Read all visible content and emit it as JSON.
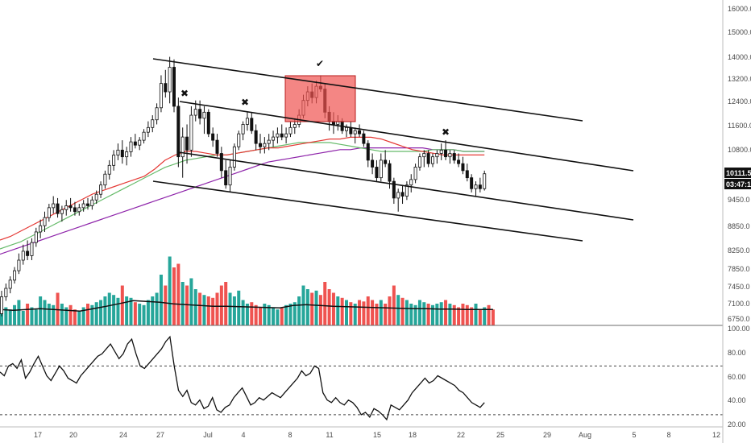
{
  "chart_data": {
    "type": "candlestick",
    "price_axis": {
      "ticks": [
        "16000.0",
        "15000.0",
        "14000.0",
        "13200.0",
        "12400.0",
        "11600.0",
        "10800.0",
        "10111.5",
        "9450.0",
        "8850.0",
        "8250.0",
        "7850.0",
        "7450.0",
        "7100.0",
        "6750.0"
      ],
      "ylim": [
        6600,
        16500
      ],
      "scale": "log"
    },
    "rsi_axis": {
      "ticks": [
        "100.00",
        "80.00",
        "60.00",
        "40.00",
        "20.00"
      ],
      "ylim": [
        20,
        100
      ],
      "levels": [
        70,
        30
      ]
    },
    "date_axis": {
      "ticks": [
        "17",
        "20",
        "24",
        "27",
        "Jul",
        "4",
        "8",
        "11",
        "15",
        "18",
        "22",
        "25",
        "29",
        "Aug",
        "5",
        "8",
        "12"
      ]
    },
    "last_price": {
      "value": "10111.5",
      "countdown": "03:47:17"
    },
    "candles": [
      [
        6850,
        7300,
        6800,
        7180
      ],
      [
        7180,
        7450,
        7100,
        7350
      ],
      [
        7350,
        7600,
        7250,
        7520
      ],
      [
        7520,
        7800,
        7450,
        7720
      ],
      [
        7720,
        8100,
        7650,
        7950
      ],
      [
        7950,
        8300,
        7850,
        8150
      ],
      [
        8150,
        8400,
        7950,
        8050
      ],
      [
        8050,
        8450,
        7950,
        8350
      ],
      [
        8350,
        8700,
        8250,
        8600
      ],
      [
        8600,
        8900,
        8450,
        8750
      ],
      [
        8750,
        9100,
        8600,
        8950
      ],
      [
        8950,
        9300,
        8850,
        9200
      ],
      [
        9200,
        9500,
        9050,
        9300
      ],
      [
        9300,
        9450,
        8950,
        9050
      ],
      [
        9050,
        9250,
        8850,
        9150
      ],
      [
        9150,
        9400,
        9000,
        9250
      ],
      [
        9250,
        9450,
        9100,
        9200
      ],
      [
        9200,
        9350,
        9000,
        9100
      ],
      [
        9100,
        9300,
        9000,
        9200
      ],
      [
        9200,
        9400,
        9100,
        9300
      ],
      [
        9300,
        9450,
        9150,
        9250
      ],
      [
        9250,
        9500,
        9150,
        9400
      ],
      [
        9400,
        9650,
        9300,
        9550
      ],
      [
        9550,
        9900,
        9450,
        9800
      ],
      [
        9800,
        10200,
        9700,
        10100
      ],
      [
        10100,
        10500,
        9950,
        10350
      ],
      [
        10350,
        10800,
        10200,
        10650
      ],
      [
        10650,
        11000,
        10500,
        10800
      ],
      [
        10800,
        11100,
        10400,
        10600
      ],
      [
        10600,
        10900,
        10350,
        10750
      ],
      [
        10750,
        11200,
        10600,
        11050
      ],
      [
        11050,
        11300,
        10850,
        10950
      ],
      [
        10950,
        11200,
        10800,
        11100
      ],
      [
        11100,
        11450,
        11000,
        11350
      ],
      [
        11350,
        11700,
        11200,
        11500
      ],
      [
        11500,
        11900,
        11350,
        11750
      ],
      [
        11750,
        12300,
        11600,
        12150
      ],
      [
        12150,
        13300,
        12000,
        13000
      ],
      [
        13000,
        13500,
        12500,
        12700
      ],
      [
        12700,
        14000,
        12300,
        13600
      ],
      [
        13600,
        13900,
        12000,
        12200
      ],
      [
        12200,
        12500,
        10300,
        10600
      ],
      [
        10600,
        11500,
        10000,
        11200
      ],
      [
        11200,
        11600,
        10400,
        10800
      ],
      [
        10800,
        12200,
        10600,
        11900
      ],
      [
        11900,
        12400,
        11700,
        12100
      ],
      [
        12100,
        12400,
        11600,
        11800
      ],
      [
        11800,
        12200,
        11300,
        12000
      ],
      [
        12000,
        12100,
        11200,
        11300
      ],
      [
        11300,
        11500,
        10900,
        11100
      ],
      [
        11100,
        11300,
        10600,
        10700
      ],
      [
        10700,
        10900,
        10000,
        10200
      ],
      [
        10200,
        10500,
        9700,
        9800
      ],
      [
        9800,
        10500,
        9600,
        10300
      ],
      [
        10300,
        11000,
        10200,
        10900
      ],
      [
        10900,
        11400,
        10800,
        11300
      ],
      [
        11300,
        11700,
        11100,
        11600
      ],
      [
        11600,
        12000,
        11400,
        11800
      ],
      [
        11800,
        12000,
        11300,
        11400
      ],
      [
        11400,
        11600,
        10800,
        11000
      ],
      [
        11000,
        11300,
        10700,
        10900
      ],
      [
        10900,
        11200,
        10700,
        11000
      ],
      [
        11000,
        11300,
        10800,
        11100
      ],
      [
        11100,
        11400,
        10900,
        11200
      ],
      [
        11200,
        11500,
        11000,
        11300
      ],
      [
        11300,
        11600,
        11100,
        11200
      ],
      [
        11200,
        11500,
        11000,
        11300
      ],
      [
        11300,
        11700,
        11200,
        11500
      ],
      [
        11500,
        11800,
        11300,
        11600
      ],
      [
        11600,
        12100,
        11500,
        11900
      ],
      [
        11900,
        12600,
        11800,
        12400
      ],
      [
        12400,
        12900,
        12200,
        12700
      ],
      [
        12700,
        13000,
        12300,
        12500
      ],
      [
        12500,
        13100,
        12300,
        12900
      ],
      [
        12900,
        13300,
        12700,
        12800
      ],
      [
        12800,
        13000,
        11800,
        12000
      ],
      [
        12000,
        12200,
        11400,
        11700
      ],
      [
        11700,
        12000,
        11300,
        11600
      ],
      [
        11600,
        11900,
        11400,
        11700
      ],
      [
        11700,
        11800,
        11300,
        11400
      ],
      [
        11400,
        11600,
        11200,
        11500
      ],
      [
        11500,
        11700,
        11200,
        11300
      ],
      [
        11300,
        11500,
        11000,
        11400
      ],
      [
        11400,
        11600,
        11200,
        11300
      ],
      [
        11300,
        11400,
        10900,
        11000
      ],
      [
        11000,
        11100,
        10300,
        10500
      ],
      [
        10500,
        10700,
        10100,
        10300
      ],
      [
        10300,
        10500,
        9900,
        10000
      ],
      [
        10000,
        10700,
        9900,
        10500
      ],
      [
        10500,
        10800,
        10300,
        10400
      ],
      [
        10400,
        10500,
        9700,
        9900
      ],
      [
        9900,
        10000,
        9300,
        9450
      ],
      [
        9450,
        9700,
        9100,
        9600
      ],
      [
        9600,
        9800,
        9300,
        9500
      ],
      [
        9500,
        9900,
        9400,
        9800
      ],
      [
        9800,
        10100,
        9600,
        9950
      ],
      [
        9950,
        10400,
        9850,
        10300
      ],
      [
        10300,
        10700,
        10200,
        10600
      ],
      [
        10600,
        10800,
        10300,
        10700
      ],
      [
        10700,
        10800,
        10300,
        10400
      ],
      [
        10400,
        10700,
        10300,
        10600
      ],
      [
        10600,
        10800,
        10400,
        10700
      ],
      [
        10700,
        11000,
        10500,
        10800
      ],
      [
        10800,
        11100,
        10500,
        10600
      ],
      [
        10600,
        10800,
        10400,
        10700
      ],
      [
        10700,
        10800,
        10400,
        10500
      ],
      [
        10500,
        10700,
        10300,
        10400
      ],
      [
        10400,
        10600,
        10100,
        10200
      ],
      [
        10200,
        10400,
        9900,
        10000
      ],
      [
        10000,
        10100,
        9600,
        9700
      ],
      [
        9700,
        9900,
        9500,
        9800
      ],
      [
        9800,
        10000,
        9600,
        9700
      ],
      [
        9700,
        10200,
        9650,
        10111.5
      ]
    ],
    "volume_bars": [
      0.3,
      0.25,
      0.22,
      0.28,
      0.35,
      0.2,
      0.3,
      0.25,
      0.22,
      0.4,
      0.35,
      0.3,
      0.28,
      0.45,
      0.3,
      0.25,
      0.28,
      0.22,
      0.2,
      0.25,
      0.3,
      0.28,
      0.32,
      0.35,
      0.4,
      0.45,
      0.42,
      0.38,
      0.55,
      0.4,
      0.38,
      0.32,
      0.3,
      0.28,
      0.35,
      0.4,
      0.45,
      0.7,
      0.55,
      0.95,
      0.8,
      0.85,
      0.6,
      0.55,
      0.65,
      0.5,
      0.45,
      0.42,
      0.4,
      0.38,
      0.45,
      0.55,
      0.6,
      0.45,
      0.4,
      0.48,
      0.35,
      0.3,
      0.32,
      0.28,
      0.25,
      0.3,
      0.28,
      0.25,
      0.22,
      0.25,
      0.28,
      0.3,
      0.32,
      0.4,
      0.55,
      0.5,
      0.45,
      0.48,
      0.42,
      0.6,
      0.5,
      0.45,
      0.4,
      0.38,
      0.35,
      0.32,
      0.3,
      0.35,
      0.33,
      0.4,
      0.35,
      0.3,
      0.35,
      0.3,
      0.4,
      0.55,
      0.42,
      0.38,
      0.35,
      0.3,
      0.28,
      0.35,
      0.32,
      0.3,
      0.28,
      0.3,
      0.32,
      0.35,
      0.3,
      0.28,
      0.25,
      0.3,
      0.28,
      0.25,
      0.3,
      0.22,
      0.25,
      0.28,
      0.22
    ],
    "rsi": [
      65,
      62,
      70,
      72,
      68,
      75,
      60,
      65,
      72,
      78,
      70,
      62,
      58,
      64,
      70,
      66,
      60,
      58,
      56,
      62,
      66,
      70,
      74,
      78,
      80,
      84,
      88,
      82,
      76,
      80,
      88,
      92,
      80,
      70,
      68,
      72,
      76,
      80,
      84,
      90,
      94,
      70,
      50,
      45,
      50,
      40,
      38,
      42,
      35,
      37,
      44,
      34,
      32,
      36,
      38,
      44,
      48,
      52,
      45,
      38,
      40,
      44,
      42,
      45,
      48,
      46,
      44,
      48,
      52,
      56,
      60,
      66,
      62,
      64,
      70,
      68,
      48,
      42,
      40,
      44,
      40,
      38,
      42,
      40,
      36,
      30,
      32,
      28,
      35,
      33,
      30,
      26,
      38,
      36,
      34,
      38,
      42,
      48,
      52,
      56,
      60,
      56,
      58,
      62,
      60,
      58,
      56,
      54,
      50,
      48,
      44,
      40,
      38,
      36,
      40
    ],
    "ema_red": [
      0.1,
      0.12,
      0.15,
      0.18,
      0.21,
      0.24,
      0.27,
      0.3,
      0.33,
      0.36,
      0.38,
      0.4,
      0.42,
      0.44,
      0.46,
      0.5,
      0.55,
      0.58,
      0.6,
      0.6,
      0.59,
      0.58,
      0.58,
      0.59,
      0.6,
      0.61,
      0.62,
      0.62,
      0.63,
      0.64,
      0.65,
      0.66,
      0.67,
      0.67,
      0.68,
      0.68,
      0.68,
      0.67,
      0.65,
      0.63,
      0.61,
      0.6,
      0.59,
      0.58,
      0.58,
      0.58,
      0.58,
      0.58
    ],
    "ema_green": [
      0.05,
      0.07,
      0.09,
      0.12,
      0.15,
      0.18,
      0.21,
      0.24,
      0.27,
      0.3,
      0.33,
      0.36,
      0.39,
      0.42,
      0.45,
      0.48,
      0.51,
      0.53,
      0.55,
      0.56,
      0.57,
      0.58,
      0.58,
      0.59,
      0.6,
      0.61,
      0.62,
      0.63,
      0.64,
      0.65,
      0.65,
      0.65,
      0.65,
      0.64,
      0.63,
      0.62,
      0.61,
      0.6,
      0.6,
      0.6,
      0.6,
      0.6,
      0.61,
      0.61,
      0.61,
      0.6,
      0.6,
      0.6
    ],
    "sma_purple": [
      0.02,
      0.04,
      0.06,
      0.08,
      0.1,
      0.12,
      0.14,
      0.16,
      0.18,
      0.2,
      0.22,
      0.24,
      0.26,
      0.28,
      0.3,
      0.32,
      0.34,
      0.36,
      0.38,
      0.4,
      0.42,
      0.44,
      0.46,
      0.48,
      0.5,
      0.52,
      0.54,
      0.55,
      0.56,
      0.57,
      0.58,
      0.59,
      0.6,
      0.61,
      0.61,
      0.62,
      0.62,
      0.62,
      0.62,
      0.62,
      0.62,
      0.62,
      0.61,
      0.61,
      0.61,
      0.6,
      0.6,
      0.6
    ],
    "volume_ma": [
      0.4,
      0.38,
      0.4,
      0.42,
      0.4,
      0.38,
      0.36,
      0.42,
      0.48,
      0.55,
      0.62,
      0.6,
      0.58,
      0.54,
      0.52,
      0.5,
      0.48,
      0.48,
      0.47,
      0.46,
      0.45,
      0.44,
      0.5,
      0.52,
      0.5,
      0.48,
      0.47,
      0.46,
      0.45,
      0.44,
      0.43,
      0.42,
      0.42,
      0.41,
      0.41,
      0.4,
      0.4,
      0.4
    ],
    "colors": {
      "up": "#26a69a",
      "down": "#ef5350",
      "volume_ma": "#111111",
      "ema_red": "#e53935",
      "ema_green": "#66bb6a",
      "sma_purple": "#8e24aa",
      "rsi": "#111111",
      "zone_fill": "#ef5350"
    },
    "annotations": [
      {
        "type": "mark",
        "symbol": "✖",
        "near": "Jun 29 high"
      },
      {
        "type": "mark",
        "symbol": "✖",
        "near": "Jul 4 high"
      },
      {
        "type": "mark",
        "symbol": "✔",
        "near": "Jul 10 high"
      },
      {
        "type": "mark",
        "symbol": "✖",
        "near": "Jul 21 high"
      },
      {
        "type": "zone",
        "description": "highlighted resistance area Jul 8–11"
      },
      {
        "type": "trendline_channel",
        "description": "descending parallel channel lines"
      }
    ],
    "grid": false
  }
}
